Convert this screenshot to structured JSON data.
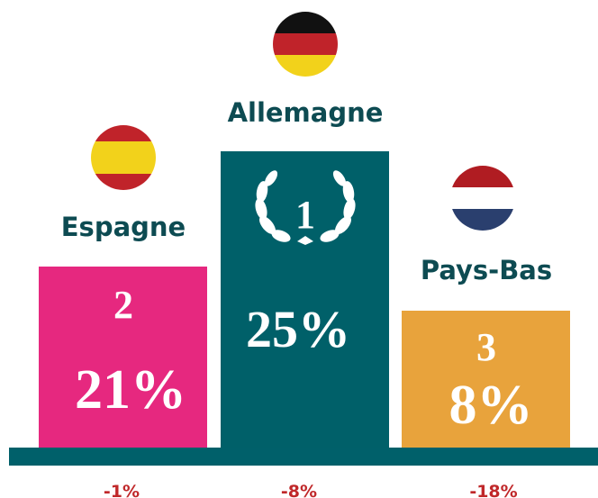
{
  "podium": [
    {
      "rank": "2",
      "country": "Espagne",
      "share": "21%",
      "change": "-1%"
    },
    {
      "rank": "1",
      "country": "Allemagne",
      "share": "25%",
      "change": "-8%"
    },
    {
      "rank": "3",
      "country": "Pays-Bas",
      "share": "8%",
      "change": "-18%"
    }
  ]
}
